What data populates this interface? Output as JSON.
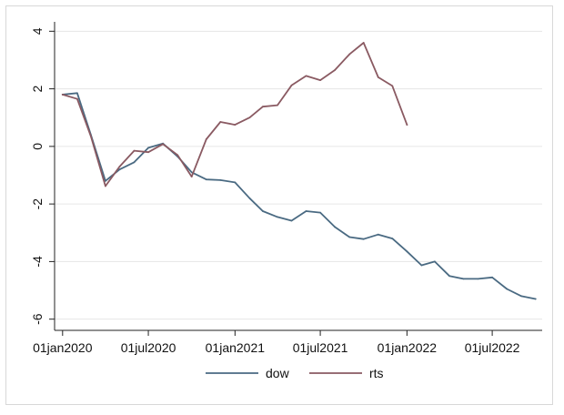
{
  "chart_data": {
    "type": "line",
    "title": "",
    "xlabel": "",
    "ylabel": "",
    "xlim": [
      "2019-12-15",
      "2022-10-15"
    ],
    "ylim": [
      -6.2,
      4.2
    ],
    "x_ticks": [
      "2020-01-01",
      "2020-07-01",
      "2021-01-01",
      "2021-07-01",
      "2022-01-01",
      "2022-07-01"
    ],
    "x_tick_labels": [
      "01jan2020",
      "01jul2020",
      "01jan2021",
      "01jul2021",
      "01jan2022",
      "01jul2022"
    ],
    "y_ticks": [
      -6,
      -4,
      -2,
      0,
      2,
      4
    ],
    "y_tick_labels": [
      "-6",
      "-4",
      "-2",
      "0",
      "2",
      "4"
    ],
    "grid": true,
    "legend_position": "bottom",
    "series": [
      {
        "name": "dow",
        "color": "#4a6a82",
        "points": [
          [
            "2020-01-01",
            1.8
          ],
          [
            "2020-02-01",
            1.85
          ],
          [
            "2020-03-01",
            0.4
          ],
          [
            "2020-04-01",
            -1.2
          ],
          [
            "2020-05-01",
            -0.8
          ],
          [
            "2020-06-01",
            -0.55
          ],
          [
            "2020-07-01",
            -0.05
          ],
          [
            "2020-08-01",
            0.1
          ],
          [
            "2020-09-01",
            -0.35
          ],
          [
            "2020-10-01",
            -0.9
          ],
          [
            "2020-11-01",
            -1.15
          ],
          [
            "2020-12-01",
            -1.17
          ],
          [
            "2021-01-01",
            -1.25
          ],
          [
            "2021-02-01",
            -1.8
          ],
          [
            "2021-03-01",
            -2.25
          ],
          [
            "2021-04-01",
            -2.45
          ],
          [
            "2021-05-01",
            -2.58
          ],
          [
            "2021-06-01",
            -2.25
          ],
          [
            "2021-07-01",
            -2.3
          ],
          [
            "2021-08-01",
            -2.8
          ],
          [
            "2021-09-01",
            -3.15
          ],
          [
            "2021-10-01",
            -3.22
          ],
          [
            "2021-11-01",
            -3.06
          ],
          [
            "2021-12-01",
            -3.2
          ],
          [
            "2022-01-01",
            -3.65
          ],
          [
            "2022-02-01",
            -4.13
          ],
          [
            "2022-03-01",
            -4.0
          ],
          [
            "2022-04-01",
            -4.5
          ],
          [
            "2022-05-01",
            -4.6
          ],
          [
            "2022-06-01",
            -4.6
          ],
          [
            "2022-07-01",
            -4.55
          ],
          [
            "2022-08-01",
            -4.95
          ],
          [
            "2022-09-01",
            -5.2
          ],
          [
            "2022-10-01",
            -5.3
          ]
        ]
      },
      {
        "name": "rts",
        "color": "#8a5a62",
        "points": [
          [
            "2020-01-01",
            1.8
          ],
          [
            "2020-02-01",
            1.65
          ],
          [
            "2020-03-01",
            0.35
          ],
          [
            "2020-04-01",
            -1.38
          ],
          [
            "2020-05-01",
            -0.7
          ],
          [
            "2020-06-01",
            -0.15
          ],
          [
            "2020-07-01",
            -0.2
          ],
          [
            "2020-08-01",
            0.08
          ],
          [
            "2020-09-01",
            -0.3
          ],
          [
            "2020-10-01",
            -1.05
          ],
          [
            "2020-11-01",
            0.25
          ],
          [
            "2020-12-01",
            0.85
          ],
          [
            "2021-01-01",
            0.75
          ],
          [
            "2021-02-01",
            1.0
          ],
          [
            "2021-03-01",
            1.38
          ],
          [
            "2021-04-01",
            1.43
          ],
          [
            "2021-05-01",
            2.12
          ],
          [
            "2021-06-01",
            2.45
          ],
          [
            "2021-07-01",
            2.3
          ],
          [
            "2021-08-01",
            2.65
          ],
          [
            "2021-09-01",
            3.2
          ],
          [
            "2021-10-01",
            3.6
          ],
          [
            "2021-11-01",
            2.4
          ],
          [
            "2021-12-01",
            2.1
          ],
          [
            "2022-01-01",
            0.75
          ]
        ]
      }
    ]
  }
}
